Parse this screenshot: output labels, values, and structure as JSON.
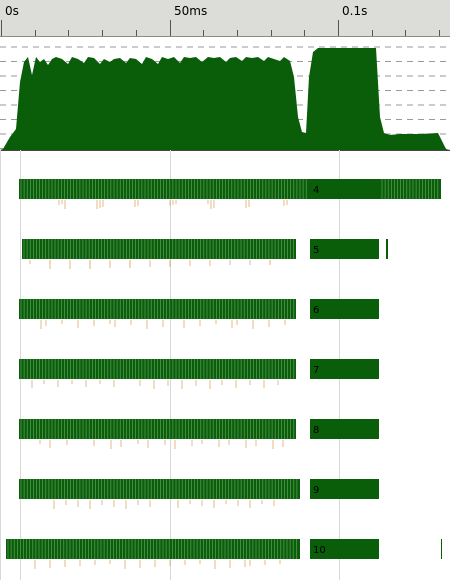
{
  "timeline": {
    "ruler": {
      "labels": [
        "0s",
        "50ms",
        "0.1s"
      ]
    },
    "colors": {
      "activity": "#0a5e0a",
      "gc_marker": "#e0a868",
      "grid": "#d8d8d8",
      "ruler_bg": "#dcdcd8"
    },
    "lanes": [
      {
        "label": "4"
      },
      {
        "label": "5"
      },
      {
        "label": "6"
      },
      {
        "label": "7"
      },
      {
        "label": "8"
      },
      {
        "label": "9"
      },
      {
        "label": "10"
      }
    ]
  }
}
